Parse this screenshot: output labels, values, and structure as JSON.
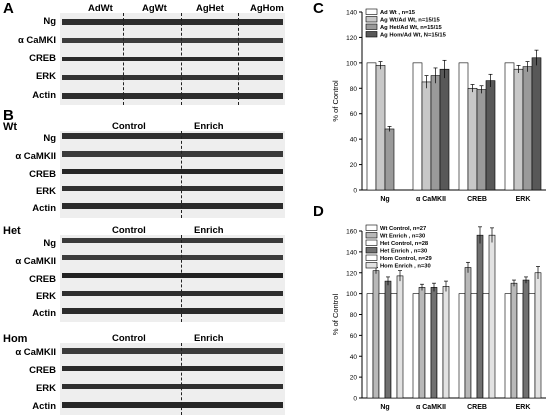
{
  "panel_labels": {
    "a": "A",
    "b": "B",
    "c": "C",
    "d": "D"
  },
  "panel_a": {
    "headers": [
      "AdWt",
      "AgWt",
      "AgHet",
      "AgHom"
    ],
    "rows": [
      "Ng",
      "α CaMKI",
      "CREB",
      "ERK",
      "Actin"
    ]
  },
  "panel_b": {
    "groups": [
      {
        "title": "Wt",
        "headers": [
          "Control",
          "Enrich"
        ],
        "rows": [
          "Ng",
          "α CaMKII",
          "CREB",
          "ERK",
          "Actin"
        ]
      },
      {
        "title": "Het",
        "headers": [
          "Control",
          "Enrich"
        ],
        "rows": [
          "Ng",
          "α CaMKII",
          "CREB",
          "ERK",
          "Actin"
        ]
      },
      {
        "title": "Hom",
        "headers": [
          "Control",
          "Enrich"
        ],
        "rows": [
          "α CaMKII",
          "CREB",
          "ERK",
          "Actin"
        ]
      }
    ]
  },
  "chart_data": [
    {
      "panel": "C",
      "type": "bar",
      "ylabel": "% of Control",
      "ylim": [
        0,
        140
      ],
      "yticks": [
        0,
        20,
        40,
        60,
        80,
        100,
        120,
        140
      ],
      "categories": [
        "Ng",
        "α CaMKII",
        "CREB",
        "ERK"
      ],
      "legend_position": "top-left",
      "series": [
        {
          "name": "Ad Wt , n=15",
          "fill": "#ffffff",
          "values": [
            100,
            100,
            100,
            100
          ],
          "errors": [
            0,
            0,
            0,
            0
          ]
        },
        {
          "name": "Ag Wt/Ad Wt, n=15/15",
          "fill": "#c8c8c8",
          "values": [
            98,
            85,
            80,
            95
          ],
          "errors": [
            3,
            5,
            3,
            3
          ]
        },
        {
          "name": "Ag Het/Ad Wt, n=15/15",
          "fill": "#9a9a9a",
          "values": [
            48,
            90,
            79,
            97
          ],
          "errors": [
            2,
            6,
            3,
            4
          ]
        },
        {
          "name": "Ag Hom/Ad Wt, N=15/15",
          "fill": "#585858",
          "values": [
            null,
            95,
            86,
            104
          ],
          "errors": [
            0,
            7,
            5,
            6
          ]
        }
      ]
    },
    {
      "panel": "D",
      "type": "bar",
      "ylabel": "% of Control",
      "ylim": [
        0,
        160
      ],
      "yticks": [
        0,
        20,
        40,
        60,
        80,
        100,
        120,
        140,
        160
      ],
      "categories": [
        "Ng",
        "α CaMKII",
        "CREB",
        "ERK"
      ],
      "legend_position": "top-left",
      "series": [
        {
          "name": "Wt Control, n=27",
          "fill": "#ffffff",
          "values": [
            100,
            100,
            100,
            100
          ],
          "errors": [
            0,
            0,
            0,
            0
          ]
        },
        {
          "name": "Wt Enrich , n=30",
          "fill": "#b8b8b8",
          "values": [
            122,
            106,
            125,
            110
          ],
          "errors": [
            3,
            3,
            5,
            3
          ]
        },
        {
          "name": "Het Control, n=28",
          "fill": "#ffffff",
          "values": [
            100,
            100,
            100,
            100
          ],
          "errors": [
            0,
            0,
            0,
            0
          ]
        },
        {
          "name": "Het Enrich , n=30",
          "fill": "#707070",
          "values": [
            112,
            106,
            156,
            113
          ],
          "errors": [
            4,
            4,
            8,
            3
          ]
        },
        {
          "name": "Hom Control, n=29",
          "fill": "#ffffff",
          "values": [
            100,
            100,
            100,
            100
          ],
          "errors": [
            0,
            0,
            0,
            0
          ]
        },
        {
          "name": "Hom Enrich , n=30",
          "fill": "#e2e2e2",
          "values": [
            117,
            107,
            156,
            120
          ],
          "errors": [
            5,
            5,
            7,
            6
          ]
        }
      ]
    }
  ]
}
